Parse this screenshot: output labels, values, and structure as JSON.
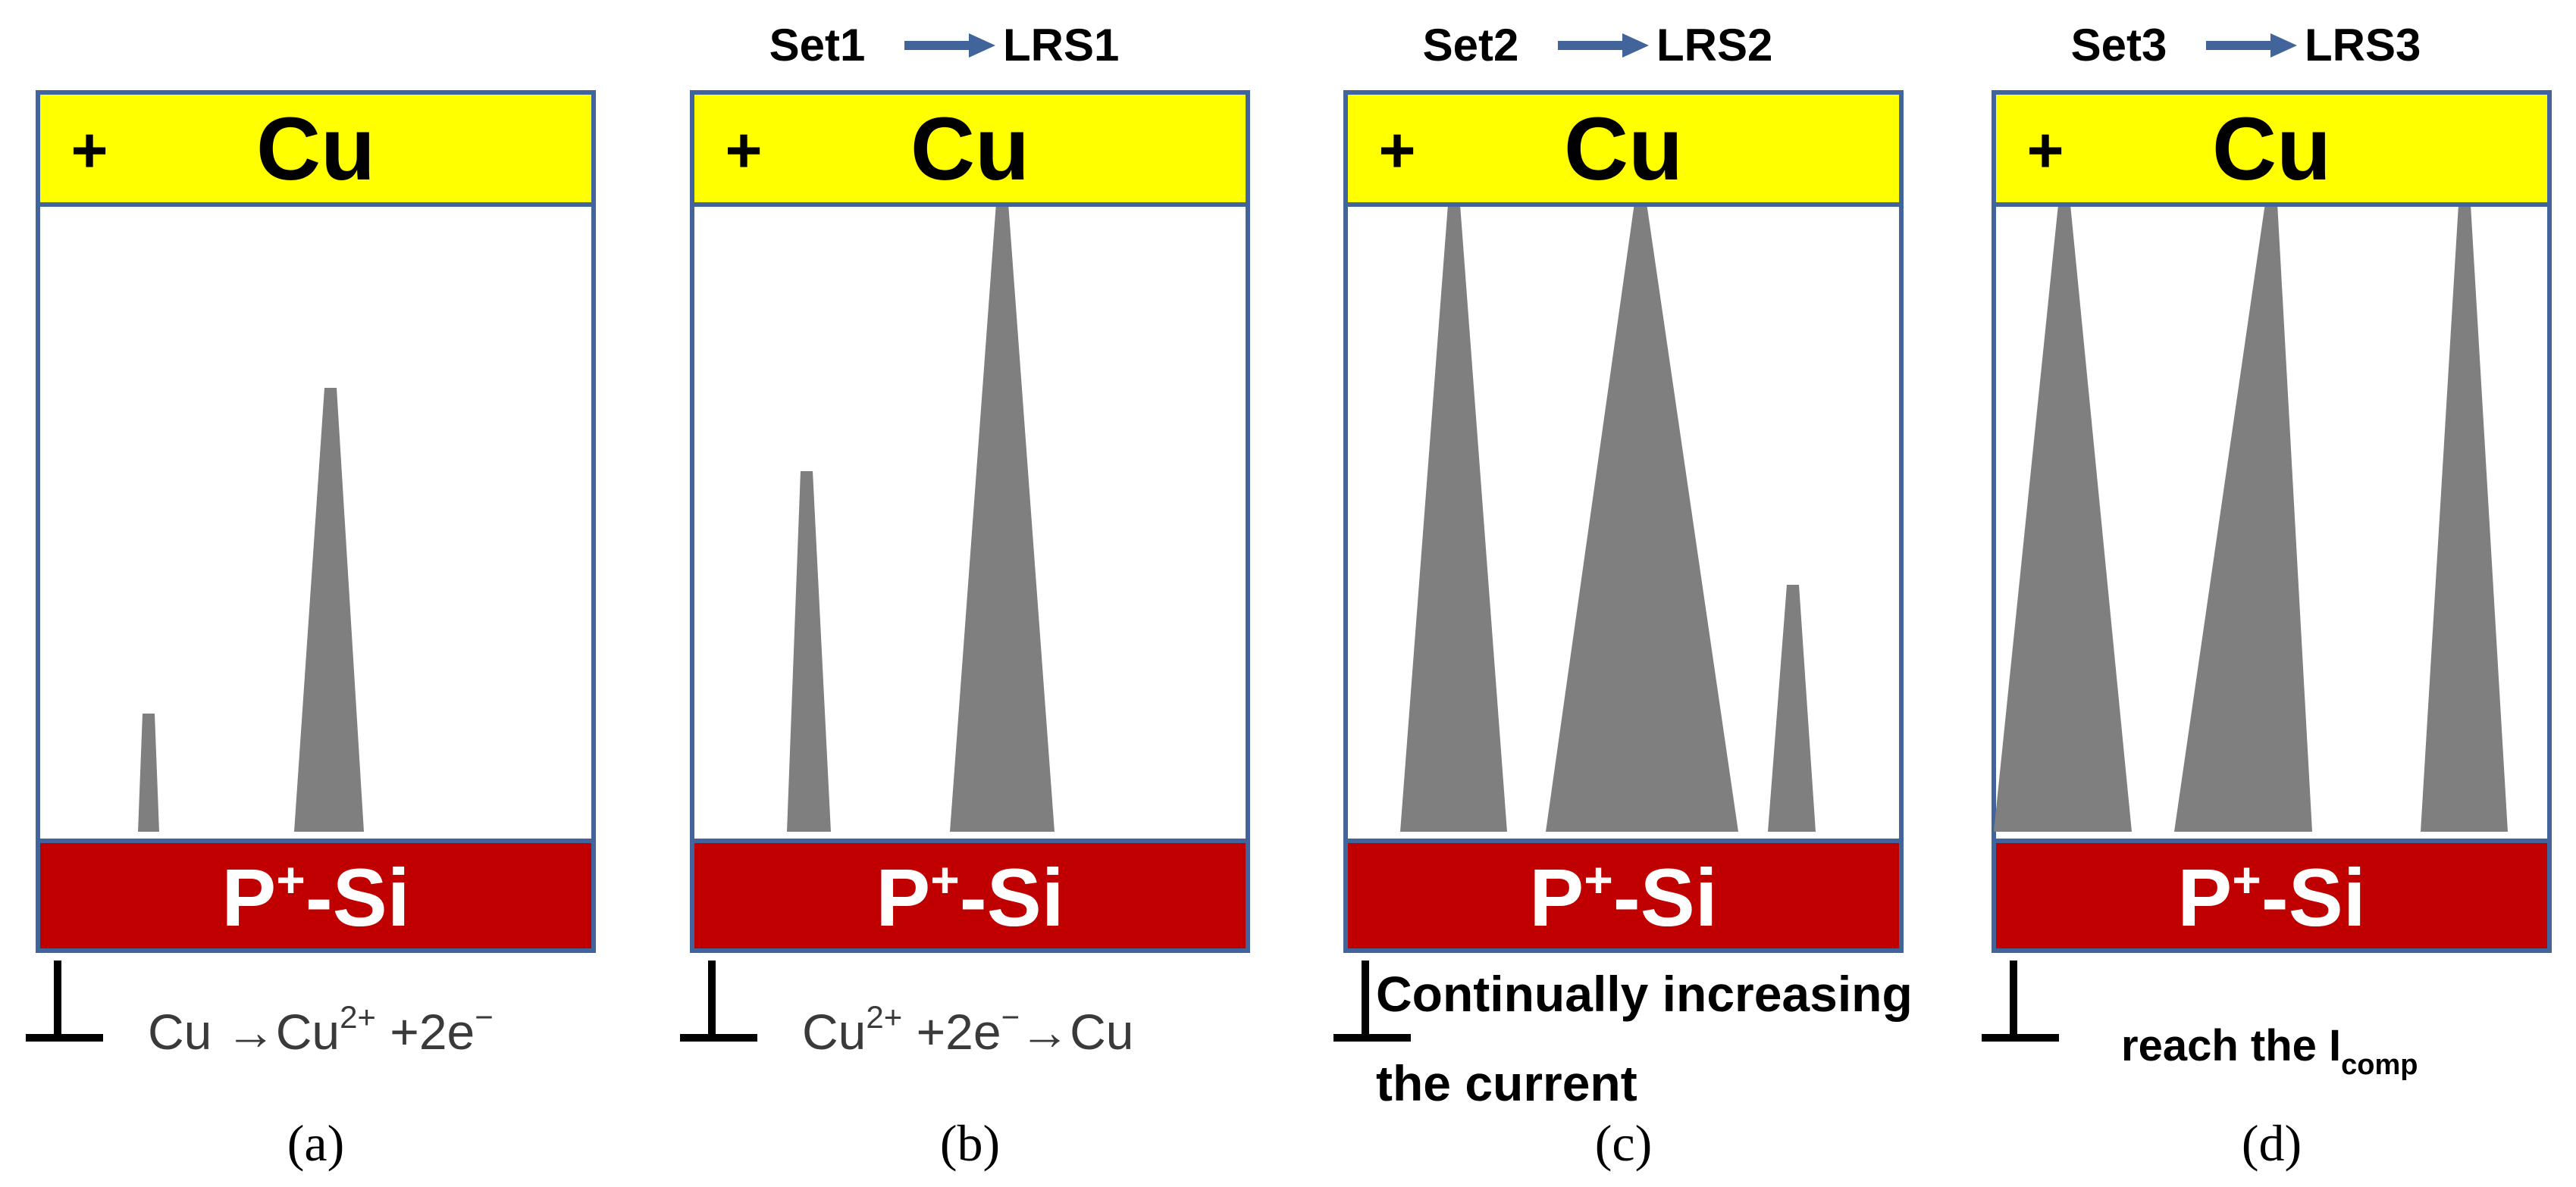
{
  "colors": {
    "electrode_top": "#ffff00",
    "electrode_bottom": "#c00000",
    "frame_border": "#41659a",
    "filament": "#7f7f7f",
    "arrow": "#41659a",
    "text_dark": "#000000",
    "text_light": "#ffffff",
    "equation_text": "#3a3a3a"
  },
  "panels": [
    {
      "caption": "(a)",
      "top_electrode": {
        "label": "Cu",
        "polarity": "+"
      },
      "bottom_electrode": {
        "base": "P",
        "superscript": "+",
        "suffix": "-Si"
      },
      "header": null,
      "equation": {
        "parts": [
          {
            "text": "Cu →Cu",
            "sup": false
          },
          {
            "text": "2+",
            "sup": true
          },
          {
            "text": " +2e",
            "sup": false
          },
          {
            "text": "−",
            "sup": true
          }
        ]
      },
      "note_lines": []
    },
    {
      "caption": "(b)",
      "top_electrode": {
        "label": "Cu",
        "polarity": "+"
      },
      "bottom_electrode": {
        "base": "P",
        "superscript": "+",
        "suffix": "-Si"
      },
      "header": {
        "from": "Set1",
        "to": "LRS1"
      },
      "equation": {
        "parts": [
          {
            "text": "Cu",
            "sup": false
          },
          {
            "text": "2+",
            "sup": true
          },
          {
            "text": " +2e",
            "sup": false
          },
          {
            "text": "−",
            "sup": true
          },
          {
            "text": "→Cu",
            "sup": false
          }
        ]
      },
      "note_lines": []
    },
    {
      "caption": "(c)",
      "top_electrode": {
        "label": "Cu",
        "polarity": "+"
      },
      "bottom_electrode": {
        "base": "P",
        "superscript": "+",
        "suffix": "-Si"
      },
      "header": {
        "from": "Set2",
        "to": "LRS2"
      },
      "equation": null,
      "note_lines": [
        "Continually increasing",
        "the current"
      ]
    },
    {
      "caption": "(d)",
      "top_electrode": {
        "label": "Cu",
        "polarity": "+"
      },
      "bottom_electrode": {
        "base": "P",
        "superscript": "+",
        "suffix": "-Si"
      },
      "header": {
        "from": "Set3",
        "to": "LRS3"
      },
      "equation": null,
      "note_lines": [],
      "note_with_subscript": {
        "text": "reach the I",
        "sub": "comp"
      }
    }
  ]
}
